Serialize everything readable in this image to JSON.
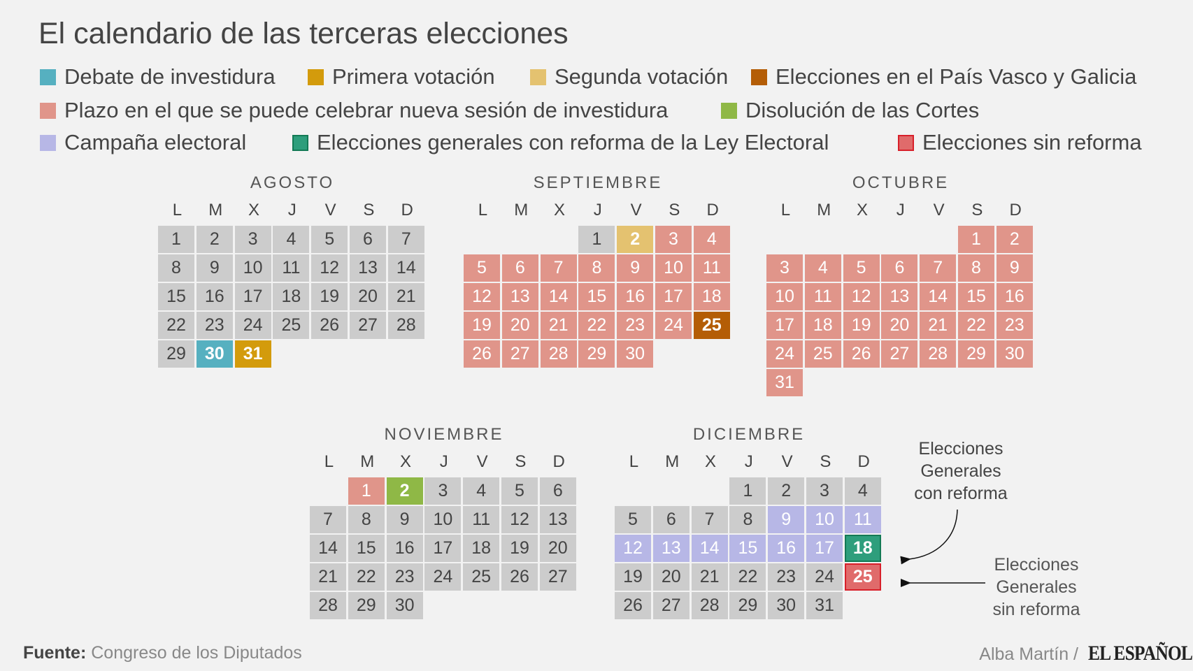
{
  "title": "El calendario de las terceras elecciones",
  "colors": {
    "default": {
      "bg": "#cccccc",
      "fg": "#444444"
    },
    "debate": {
      "bg": "#56b0c0",
      "fg": "#ffffff"
    },
    "primera": {
      "bg": "#d39b0c",
      "fg": "#ffffff"
    },
    "segunda": {
      "bg": "#e4c270",
      "fg": "#ffffff"
    },
    "vasco": {
      "bg": "#b45d06",
      "fg": "#ffffff"
    },
    "plazo": {
      "bg": "#e0958a",
      "fg": "#ffffff"
    },
    "disolucion": {
      "bg": "#8fb846",
      "fg": "#ffffff"
    },
    "campana": {
      "bg": "#b7b7e6",
      "fg": "#ffffff"
    },
    "con_reforma": {
      "bg": "#2e9e7c",
      "fg": "#ffffff",
      "border": "#137a55"
    },
    "sin_reforma": {
      "bg": "#e06b6b",
      "fg": "#ffffff",
      "border": "#d8202a"
    }
  },
  "legend": [
    {
      "key": "debate",
      "label": "Debate de investidura"
    },
    {
      "key": "primera",
      "label": "Primera votación"
    },
    {
      "key": "segunda",
      "label": "Segunda votación"
    },
    {
      "key": "vasco",
      "label": "Elecciones en el País Vasco y Galicia"
    },
    {
      "key": "plazo",
      "label": "Plazo en el que se puede celebrar nueva sesión de investidura"
    },
    {
      "key": "disolucion",
      "label": "Disolución de las Cortes"
    },
    {
      "key": "campana",
      "label": "Campaña electoral"
    },
    {
      "key": "con_reforma",
      "label": "Elecciones generales con reforma de la Ley Electoral"
    },
    {
      "key": "sin_reforma",
      "label": "Elecciones sin reforma"
    }
  ],
  "weekdays": [
    "L",
    "M",
    "X",
    "J",
    "V",
    "S",
    "D"
  ],
  "months": [
    {
      "name": "AGOSTO",
      "first_weekday": 0,
      "days": 31,
      "default": "default",
      "marks": {
        "30": "debate",
        "31": "primera"
      },
      "bold": [
        30,
        31
      ]
    },
    {
      "name": "SEPTIEMBRE",
      "first_weekday": 3,
      "days": 30,
      "default": "plazo",
      "marks": {
        "1": "default",
        "2": "segunda",
        "25": "vasco"
      },
      "bold": [
        2,
        25
      ]
    },
    {
      "name": "OCTUBRE",
      "first_weekday": 5,
      "days": 31,
      "default": "plazo",
      "marks": {},
      "bold": []
    },
    {
      "name": "NOVIEMBRE",
      "first_weekday": 1,
      "days": 30,
      "default": "default",
      "marks": {
        "1": "plazo",
        "2": "disolucion"
      },
      "bold": [
        2
      ]
    },
    {
      "name": "DICIEMBRE",
      "first_weekday": 3,
      "days": 31,
      "default": "default",
      "marks": {
        "9": "campana",
        "10": "campana",
        "11": "campana",
        "12": "campana",
        "13": "campana",
        "14": "campana",
        "15": "campana",
        "16": "campana",
        "17": "campana",
        "18": "con_reforma",
        "25": "sin_reforma"
      },
      "bold": [
        18,
        25
      ]
    }
  ],
  "annotations": {
    "con_reforma": [
      "Elecciones",
      "Generales",
      "con reforma"
    ],
    "sin_reforma": [
      "Elecciones",
      "Generales",
      "sin reforma"
    ]
  },
  "footer": {
    "source_label": "Fuente:",
    "source": "Congreso de los Diputados",
    "author": "Alba Martín /",
    "logo": "EL ESPAÑOL"
  }
}
